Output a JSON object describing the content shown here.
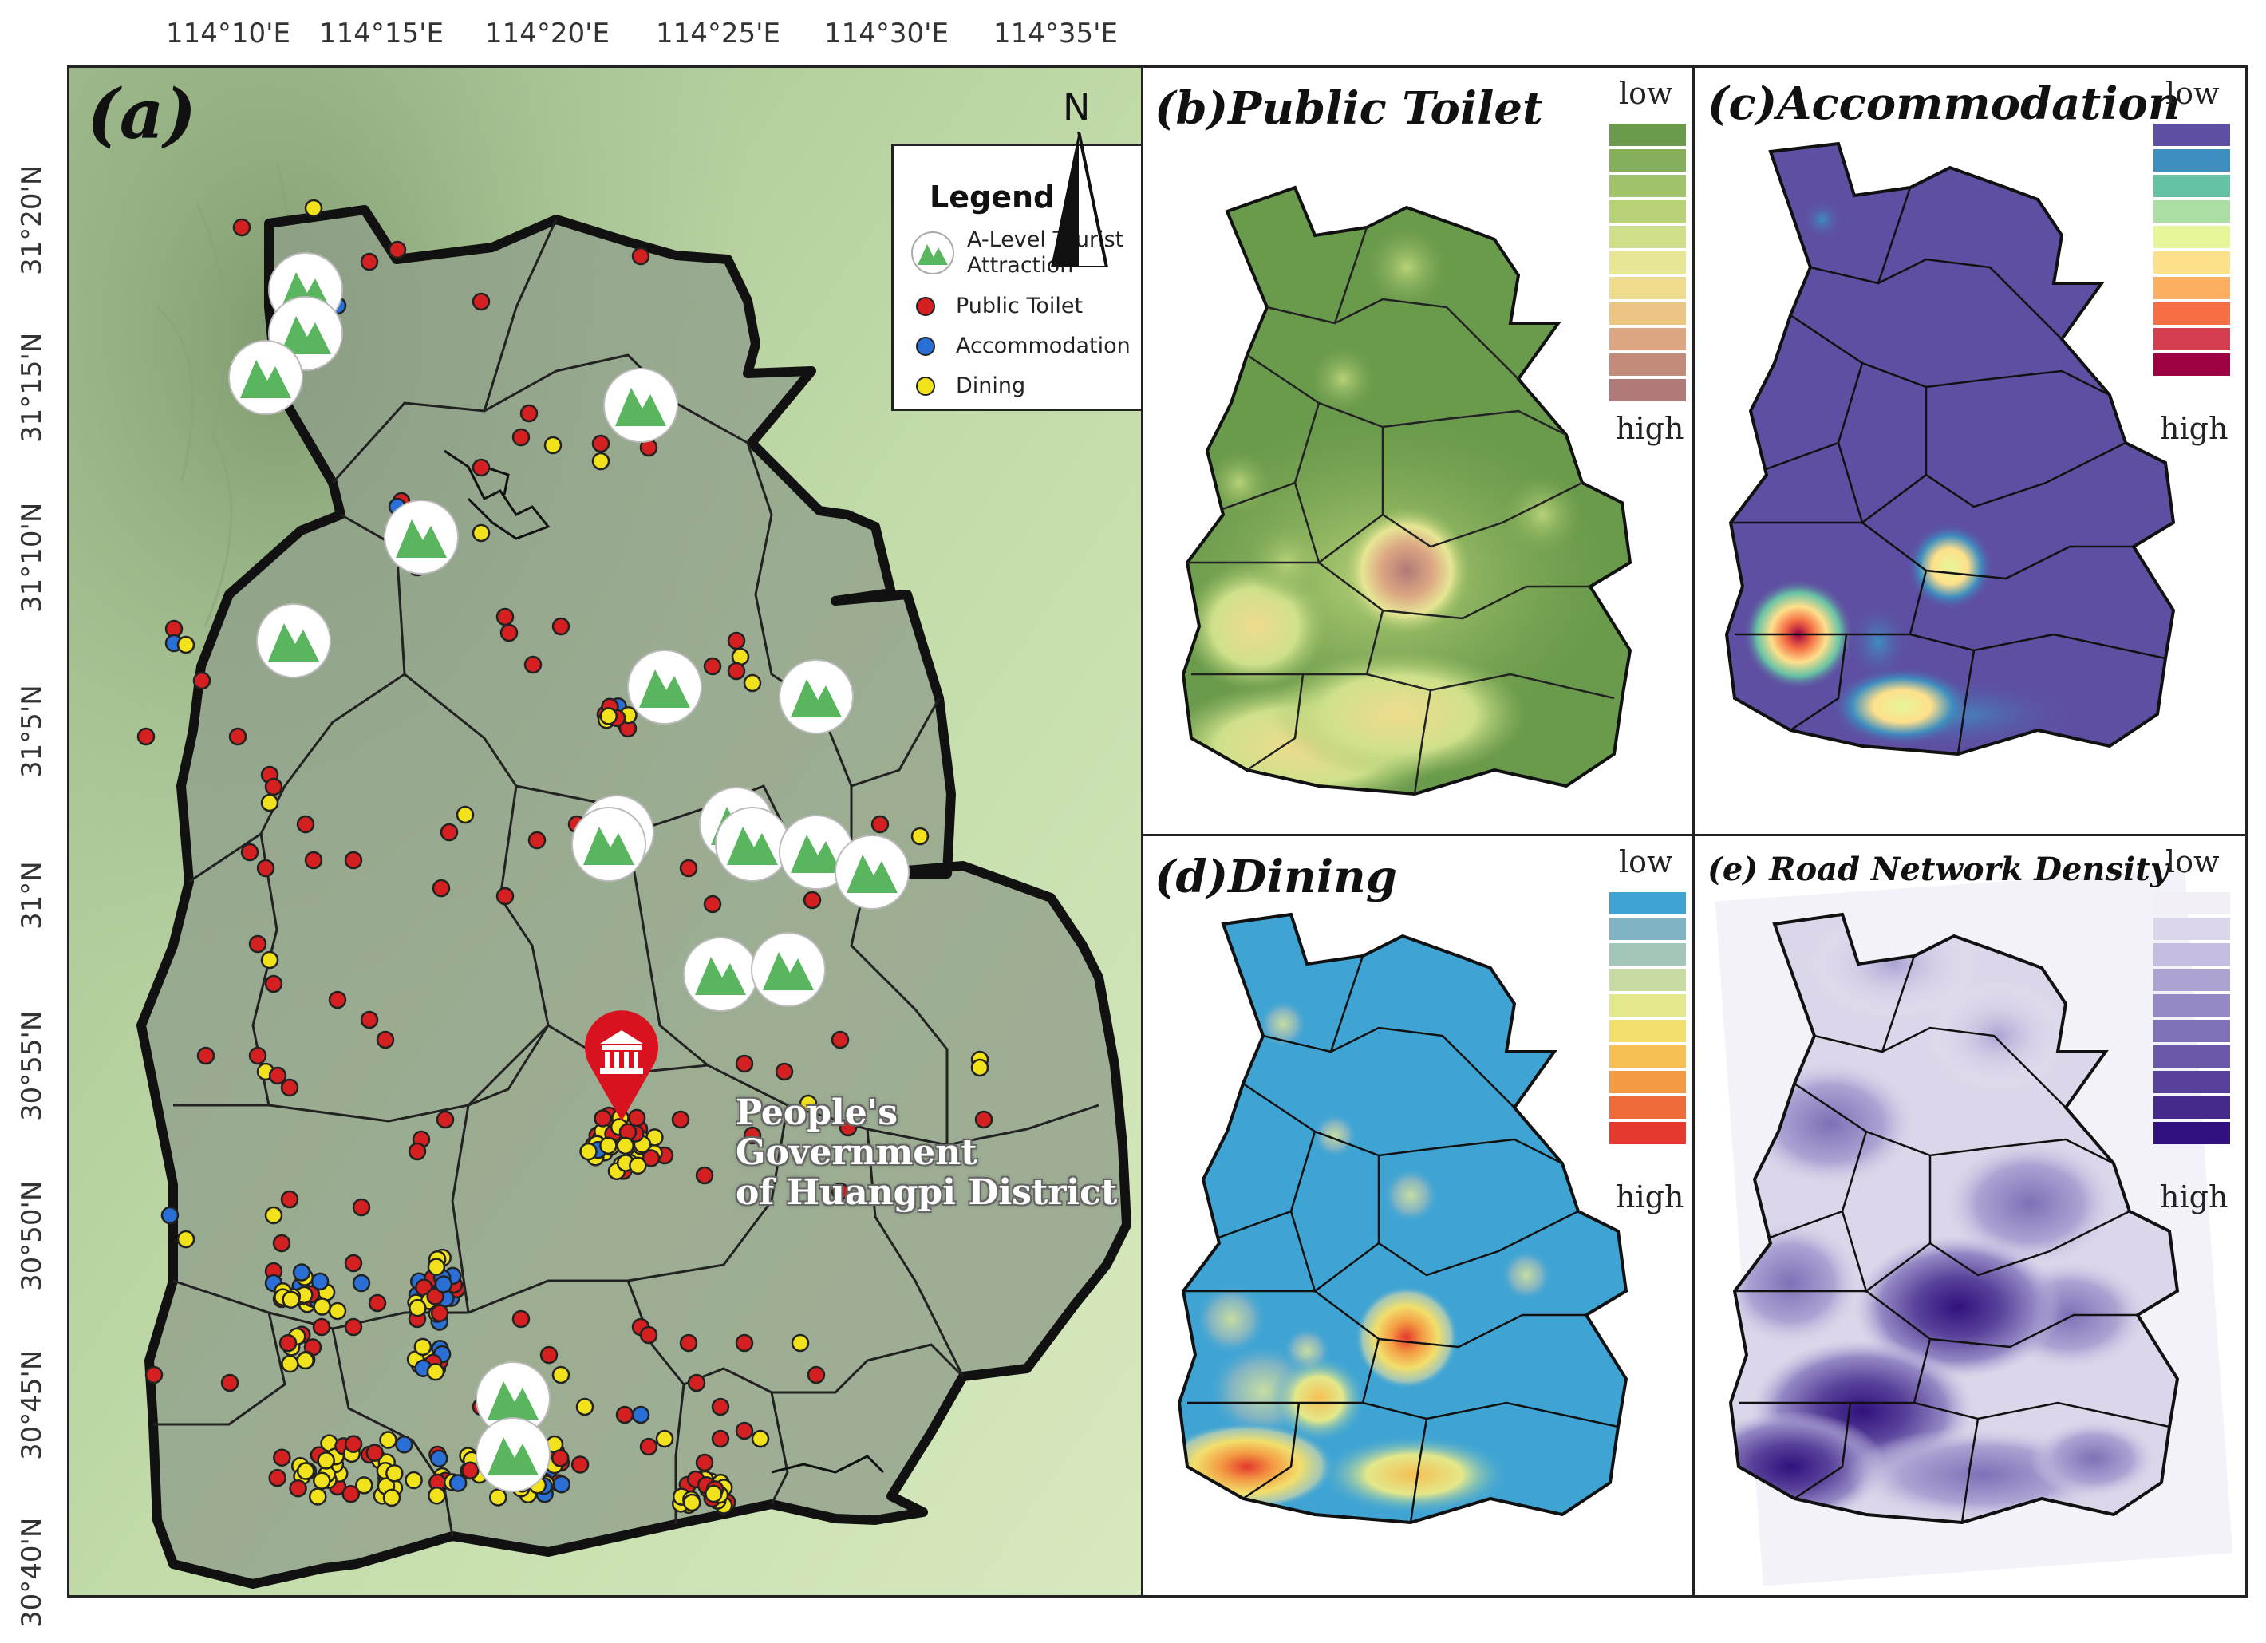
{
  "lon_ticks": [
    "114°10'E",
    "114°15'E",
    "114°20'E",
    "114°25'E",
    "114°30'E",
    "114°35'E"
  ],
  "lat_ticks": [
    "31°20'N",
    "31°15'N",
    "31°10'N",
    "31°5'N",
    "31°N",
    "30°55'N",
    "30°50'N",
    "30°45'N",
    "30°40'N"
  ],
  "panel_a": {
    "label": "(a)",
    "north": "N",
    "legend": {
      "title": "Legend",
      "items": [
        {
          "label_line1": "A-Level Tourist",
          "label_line2": "Attraction",
          "icon": "mountain-attraction-icon"
        },
        {
          "label": "Public Toilet",
          "color": "#d42020"
        },
        {
          "label": "Accommodation",
          "color": "#2a6fd6"
        },
        {
          "label": "Dining",
          "color": "#f2e21c"
        }
      ]
    },
    "government": {
      "line1": "People's Government",
      "line2": "of Huangpi District",
      "icon": "government-building-icon"
    }
  },
  "panels": {
    "b": {
      "title": "(b)Public Toilet",
      "low": "low",
      "high": "high",
      "ramp": [
        "#6a9a4c",
        "#86af5b",
        "#9fc26a",
        "#b8d278",
        "#cfe08a",
        "#e6e694",
        "#efdc8e",
        "#ecc484",
        "#dca683",
        "#c38b7a",
        "#b07a78"
      ]
    },
    "c": {
      "title": "(c)Accommodation",
      "low": "low",
      "high": "high",
      "ramp": [
        "#5e4fa2",
        "#3e8ebf",
        "#66c2a5",
        "#abdda4",
        "#e6f598",
        "#fee08b",
        "#fdae61",
        "#f46d43",
        "#d53e4f",
        "#9e0142"
      ]
    },
    "d": {
      "title": "(d)Dining",
      "low": "low",
      "high": "high",
      "ramp": [
        "#3fa4d4",
        "#7fb3c4",
        "#a2c7b8",
        "#c6dca2",
        "#e3e88a",
        "#f2df6b",
        "#f6bf54",
        "#f39a43",
        "#ee6a38",
        "#e5392d"
      ]
    },
    "e": {
      "title": "(e) Road Network Density",
      "low": "low",
      "high": "high",
      "ramp": [
        "#f1eef6",
        "#dcd6ea",
        "#c4bde0",
        "#aca3d3",
        "#9588c5",
        "#8070b7",
        "#6c58a9",
        "#58419a",
        "#44298b",
        "#30117d"
      ]
    }
  }
}
